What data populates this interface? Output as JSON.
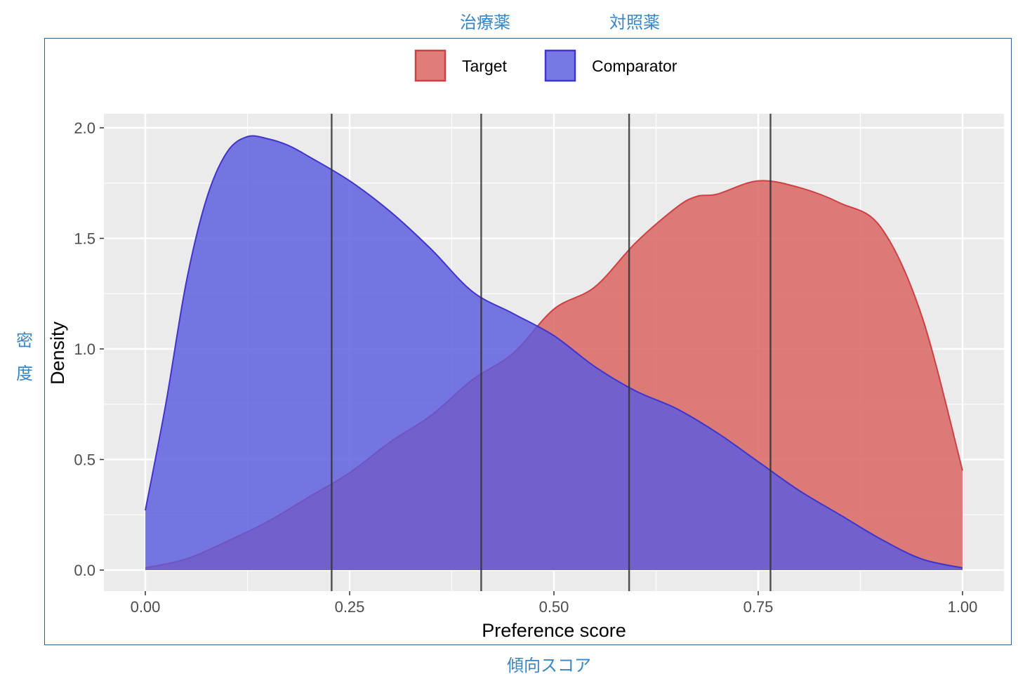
{
  "annotations": {
    "top_left": "治療薬",
    "top_right": "対照薬",
    "bottom": "傾向スコア",
    "left_line1": "密",
    "left_line2": "度"
  },
  "colors": {
    "target_fill": "#d8605e",
    "target_stroke": "#cf4044",
    "comparator_fill": "#5a5ade",
    "comparator_stroke": "#3f35cc",
    "panel_bg": "#ebebeb",
    "frame": "#2f5f8f",
    "annotation_text": "#3a86c4"
  },
  "chart_data": {
    "type": "area",
    "xlabel": "Preference score",
    "ylabel": "Density",
    "xlim": [
      0,
      1
    ],
    "ylim": [
      0,
      2
    ],
    "x_ticks": [
      0,
      0.25,
      0.5,
      0.75,
      1
    ],
    "x_tick_labels": [
      "0.00",
      "0.25",
      "0.50",
      "0.75",
      "1.00"
    ],
    "y_ticks": [
      0,
      0.5,
      1,
      1.5,
      2
    ],
    "y_tick_labels": [
      "0.0",
      "0.5",
      "1.0",
      "1.5",
      "2.0"
    ],
    "grid": true,
    "legend_position": "top",
    "vertical_lines": [
      0.228,
      0.411,
      0.592,
      0.765
    ],
    "series": [
      {
        "name": "Target",
        "x": [
          0,
          0.05,
          0.1,
          0.15,
          0.2,
          0.25,
          0.3,
          0.35,
          0.4,
          0.45,
          0.5,
          0.55,
          0.6,
          0.65,
          0.675,
          0.7,
          0.75,
          0.8,
          0.85,
          0.9,
          0.95,
          1
        ],
        "values": [
          0.01,
          0.05,
          0.13,
          0.22,
          0.33,
          0.44,
          0.58,
          0.7,
          0.86,
          0.98,
          1.18,
          1.28,
          1.48,
          1.64,
          1.69,
          1.7,
          1.76,
          1.73,
          1.66,
          1.55,
          1.15,
          0.45
        ]
      },
      {
        "name": "Comparator",
        "x": [
          0,
          0.025,
          0.05,
          0.075,
          0.1,
          0.125,
          0.15,
          0.175,
          0.2,
          0.25,
          0.3,
          0.35,
          0.4,
          0.45,
          0.5,
          0.55,
          0.6,
          0.65,
          0.7,
          0.75,
          0.8,
          0.85,
          0.9,
          0.95,
          1
        ],
        "values": [
          0.27,
          0.75,
          1.3,
          1.68,
          1.89,
          1.96,
          1.95,
          1.92,
          1.87,
          1.76,
          1.62,
          1.45,
          1.26,
          1.16,
          1.06,
          0.92,
          0.81,
          0.73,
          0.62,
          0.49,
          0.36,
          0.25,
          0.14,
          0.05,
          0.01
        ]
      }
    ]
  }
}
